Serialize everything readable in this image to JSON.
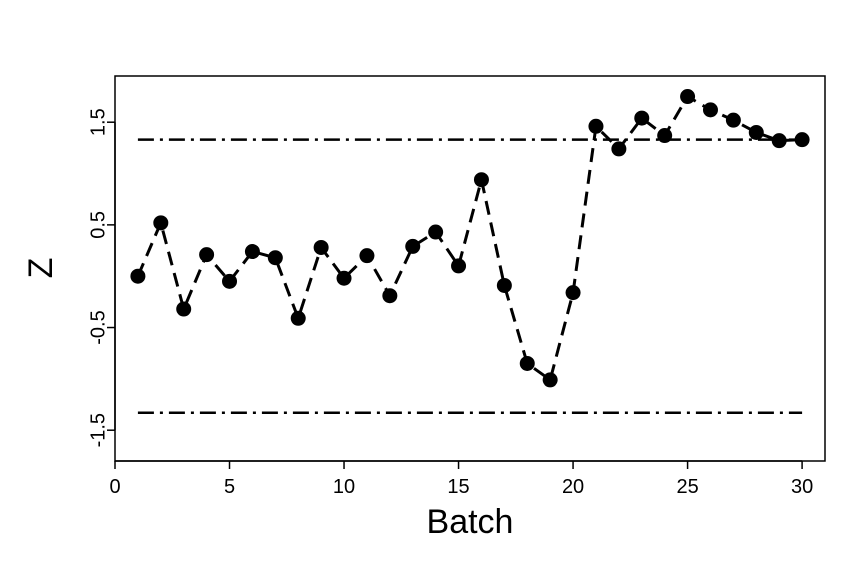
{
  "chart_data": {
    "type": "line",
    "xlabel": "Batch",
    "ylabel": "Z",
    "xlim": [
      0,
      31
    ],
    "ylim": [
      -1.8,
      1.95
    ],
    "x_ticks": [
      0,
      5,
      10,
      15,
      20,
      25,
      30
    ],
    "x_tick_labels": [
      "0",
      "5",
      "10",
      "15",
      "20",
      "25",
      "30"
    ],
    "y_ticks": [
      -1.5,
      -0.5,
      0.5,
      1.5
    ],
    "y_tick_labels": [
      "-1.5",
      "-0.5",
      "0.5",
      "1.5"
    ],
    "grid": false,
    "series": [
      {
        "style": "dashed-with-filled-circles",
        "color": "#000000",
        "x": [
          1,
          2,
          3,
          4,
          5,
          6,
          7,
          8,
          9,
          10,
          11,
          12,
          13,
          14,
          15,
          16,
          17,
          18,
          19,
          20,
          21,
          22,
          23,
          24,
          25,
          26,
          27,
          28,
          29,
          30
        ],
        "y": [
          0.0,
          0.52,
          -0.32,
          0.21,
          -0.05,
          0.24,
          0.18,
          -0.41,
          0.28,
          -0.02,
          0.2,
          -0.19,
          0.29,
          0.43,
          0.1,
          0.94,
          -0.09,
          -0.85,
          -1.01,
          -0.16,
          1.46,
          1.24,
          1.54,
          1.37,
          1.75,
          1.62,
          1.52,
          1.4,
          1.32,
          1.33
        ]
      }
    ],
    "reference_lines": [
      {
        "style": "dash-dot",
        "y": 1.33,
        "x_from": 1,
        "x_to": 30,
        "color": "#000000"
      },
      {
        "style": "dash-dot",
        "y": -1.33,
        "x_from": 1,
        "x_to": 30,
        "color": "#000000"
      }
    ]
  }
}
